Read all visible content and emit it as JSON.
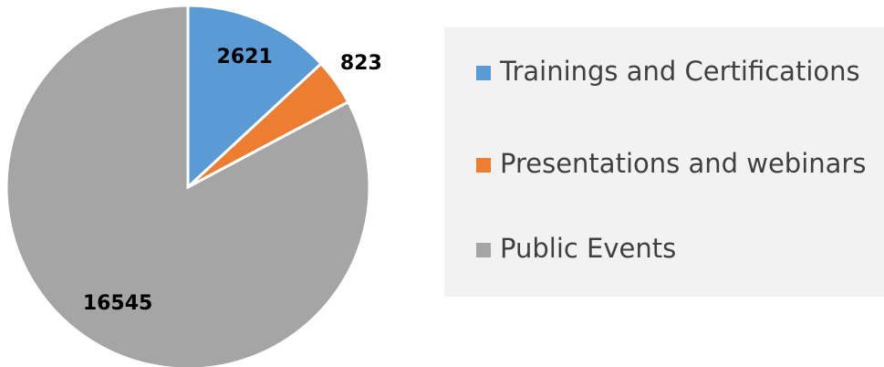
{
  "chart_data": {
    "type": "pie",
    "categories": [
      "Trainings and Certifications",
      "Presentations and webinars",
      "Public Events"
    ],
    "values": [
      2621,
      823,
      16545
    ],
    "colors": [
      "#5b9bd5",
      "#ed7d31",
      "#a5a5a5"
    ],
    "legend": "right"
  }
}
